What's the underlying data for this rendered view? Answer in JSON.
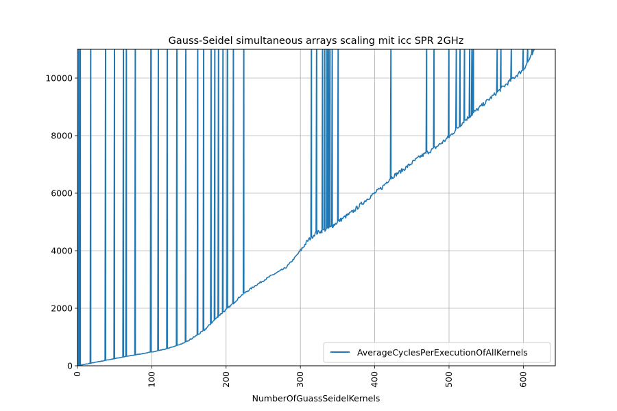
{
  "chart_data": {
    "type": "line",
    "title": "Gauss-Seidel simultaneous arrays scaling mit icc SPR 2GHz",
    "xlabel": "NumberOfGuassSeidelKernels",
    "ylabel": "",
    "xlim": [
      0,
      643
    ],
    "ylim": [
      0,
      11000
    ],
    "x_ticks": [
      0,
      100,
      200,
      300,
      400,
      500,
      600
    ],
    "y_ticks": [
      0,
      2000,
      4000,
      6000,
      8000,
      10000
    ],
    "x_tick_rotation": -90,
    "grid": true,
    "legend_position": "lower-right",
    "color": "#1f77b4",
    "series": [
      {
        "name": "AverageCyclesPerExecutionOfAllKernels",
        "baseline": [
          [
            0,
            0
          ],
          [
            20,
            100
          ],
          [
            40,
            200
          ],
          [
            60,
            300
          ],
          [
            80,
            390
          ],
          [
            100,
            480
          ],
          [
            120,
            590
          ],
          [
            140,
            760
          ],
          [
            150,
            880
          ],
          [
            160,
            1050
          ],
          [
            170,
            1220
          ],
          [
            180,
            1480
          ],
          [
            190,
            1740
          ],
          [
            200,
            1950
          ],
          [
            210,
            2180
          ],
          [
            220,
            2440
          ],
          [
            240,
            2800
          ],
          [
            260,
            3120
          ],
          [
            280,
            3400
          ],
          [
            290,
            3680
          ],
          [
            300,
            4000
          ],
          [
            310,
            4350
          ],
          [
            320,
            4600
          ],
          [
            330,
            4700
          ],
          [
            340,
            4800
          ],
          [
            350,
            5000
          ],
          [
            370,
            5350
          ],
          [
            390,
            5800
          ],
          [
            410,
            6200
          ],
          [
            420,
            6500
          ],
          [
            440,
            6850
          ],
          [
            460,
            7250
          ],
          [
            480,
            7550
          ],
          [
            500,
            7950
          ],
          [
            520,
            8500
          ],
          [
            540,
            8950
          ],
          [
            560,
            9400
          ],
          [
            580,
            9850
          ],
          [
            600,
            10300
          ],
          [
            615,
            10950
          ]
        ],
        "spike_x": [
          2,
          4,
          18,
          38,
          50,
          62,
          66,
          78,
          99,
          109,
          121,
          134,
          146,
          162,
          170,
          180,
          185,
          190,
          196,
          202,
          210,
          224,
          315,
          322,
          330,
          333,
          336,
          338,
          340,
          343,
          351,
          422,
          470,
          480,
          500,
          510,
          515,
          521,
          528,
          531,
          533,
          565,
          570,
          584,
          600,
          606,
          612
        ]
      }
    ]
  }
}
